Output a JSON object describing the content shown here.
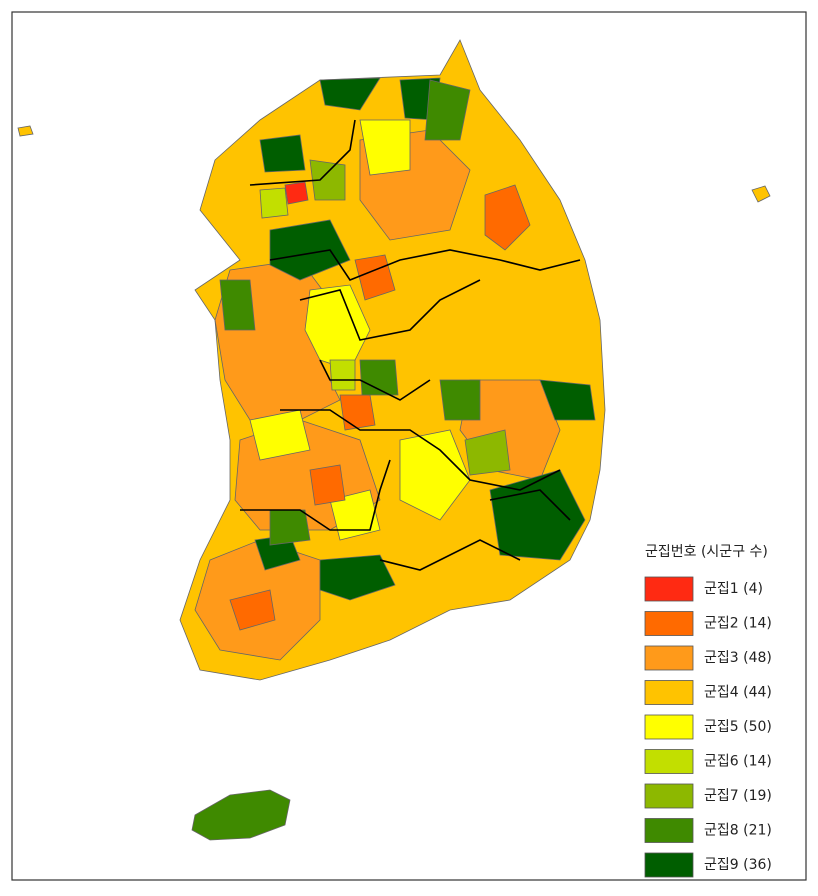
{
  "legend": {
    "title": "군집번호 (시군구 수)",
    "items": [
      {
        "label": "군집1 (4)",
        "color": "#ff2a12"
      },
      {
        "label": "군집2 (14)",
        "color": "#ff6a00"
      },
      {
        "label": "군집3 (48)",
        "color": "#ff9a1a"
      },
      {
        "label": "군집4 (44)",
        "color": "#ffc300"
      },
      {
        "label": "군집5 (50)",
        "color": "#ffff00"
      },
      {
        "label": "군집6 (14)",
        "color": "#c2df00"
      },
      {
        "label": "군집7 (19)",
        "color": "#8db800"
      },
      {
        "label": "군집8 (21)",
        "color": "#3f8a00"
      },
      {
        "label": "군집9 (36)",
        "color": "#005e00"
      }
    ]
  }
}
